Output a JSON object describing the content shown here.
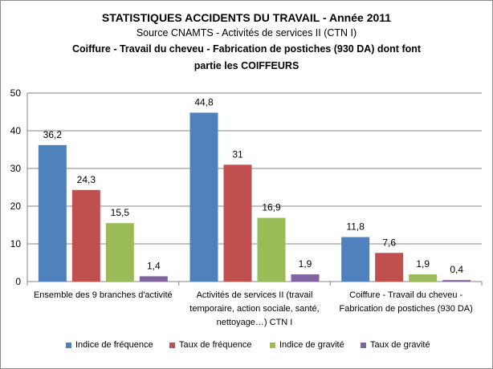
{
  "chart_data": {
    "type": "bar",
    "title": "STATISTIQUES ACCIDENTS DU TRAVAIL  - Année 2011",
    "subtitle_1": "Source CNAMTS -   Activités de services II (CTN I)",
    "subtitle_2": "Coiffure - Travail  du cheveu - Fabrication de postiches (930 DA) dont font",
    "subtitle_3": "partie les COIFFEURS",
    "categories": [
      [
        "Ensemble des 9 branches d'activité"
      ],
      [
        "Activités de services II (travail",
        "temporaire, action sociale, santé,",
        "nettoyage…) CTN I"
      ],
      [
        "Coiffure - Travail du cheveu -",
        "Fabrication de postiches (930 DA)"
      ]
    ],
    "series": [
      {
        "name": "Indice de fréquence",
        "color": "#4f81bd",
        "values": [
          36.2,
          44.8,
          11.8
        ],
        "labels": [
          "36,2",
          "44,8",
          "11,8"
        ]
      },
      {
        "name": "Taux de fréquence",
        "color": "#c0504d",
        "values": [
          24.3,
          31,
          7.6
        ],
        "labels": [
          "24,3",
          "31",
          "7,6"
        ]
      },
      {
        "name": "Indice de gravité",
        "color": "#9bbb59",
        "values": [
          15.5,
          16.9,
          1.9
        ],
        "labels": [
          "15,5",
          "16,9",
          "1,9"
        ]
      },
      {
        "name": "Taux de gravité",
        "color": "#8064a2",
        "values": [
          1.4,
          1.9,
          0.4
        ],
        "labels": [
          "1,4",
          "1,9",
          "0,4"
        ]
      }
    ],
    "ylim": [
      0,
      50
    ],
    "yticks": [
      0,
      10,
      20,
      30,
      40,
      50
    ],
    "grid": true,
    "legend": "bottom"
  }
}
